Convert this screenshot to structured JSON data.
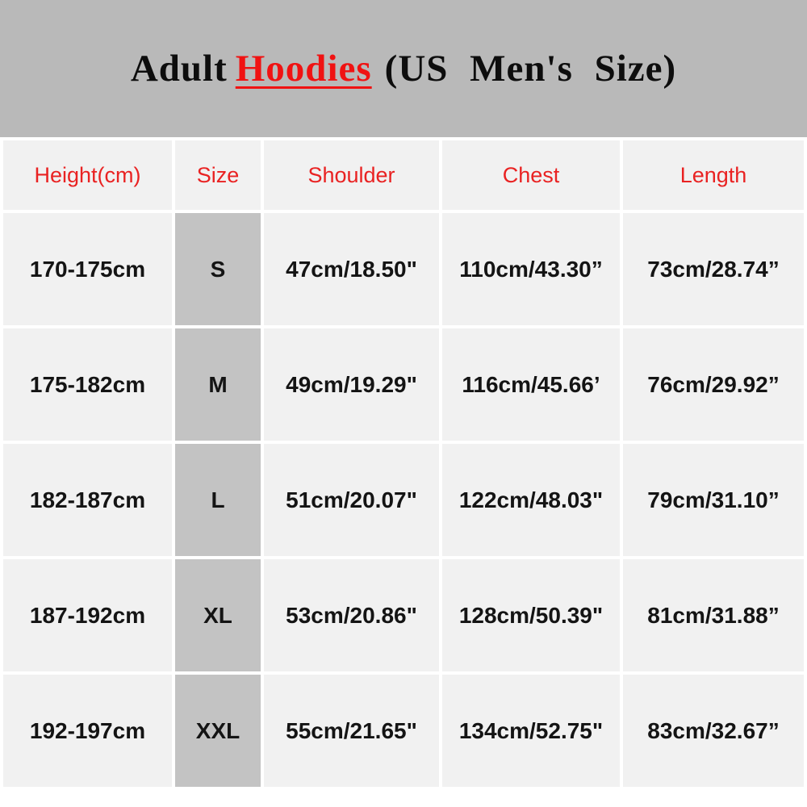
{
  "banner": {
    "title_prefix": "Adult",
    "title_highlight": "Hoodies",
    "title_suffix": "(US Men's Size)"
  },
  "table": {
    "headers": [
      "Height(cm)",
      "Size",
      "Shoulder",
      "Chest",
      "Length"
    ],
    "rows": [
      {
        "height": "170-175cm",
        "size": "S",
        "shoulder": "47cm/18.50\"",
        "chest": "110cm/43.30”",
        "length": "73cm/28.74”"
      },
      {
        "height": "175-182cm",
        "size": "M",
        "shoulder": "49cm/19.29\"",
        "chest": "116cm/45.66’",
        "length": "76cm/29.92”"
      },
      {
        "height": "182-187cm",
        "size": "L",
        "shoulder": "51cm/20.07\"",
        "chest": "122cm/48.03\"",
        "length": "79cm/31.10”"
      },
      {
        "height": "187-192cm",
        "size": "XL",
        "shoulder": "53cm/20.86\"",
        "chest": "128cm/50.39\"",
        "length": "81cm/31.88”"
      },
      {
        "height": "192-197cm",
        "size": "XXL",
        "shoulder": "55cm/21.65\"",
        "chest": "134cm/52.75\"",
        "length": "83cm/32.67”"
      }
    ]
  },
  "colors": {
    "banner_background": "#b9b9b9",
    "cell_background": "#f1f1f1",
    "size_column_background": "#c3c3c3",
    "header_text_red": "#e92222",
    "title_highlight_red": "#f01212",
    "data_text": "#141414",
    "gap_white": "#ffffff"
  }
}
